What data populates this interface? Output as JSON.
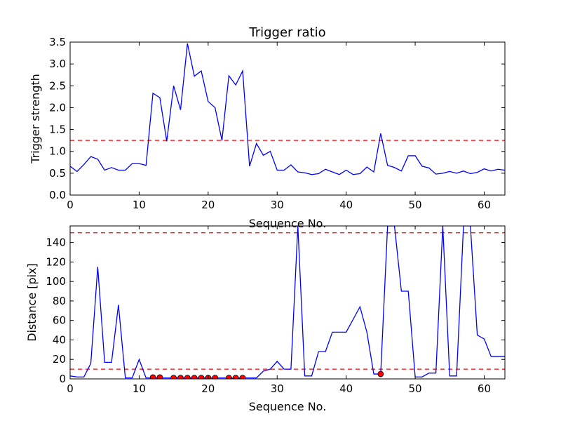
{
  "chart_data": [
    {
      "type": "line",
      "title": "Trigger ratio",
      "xlabel": "Sequence No.",
      "ylabel": "Trigger strength",
      "xlim": [
        0,
        63
      ],
      "ylim": [
        0,
        3.5
      ],
      "xticks": [
        0,
        10,
        20,
        30,
        40,
        50,
        60
      ],
      "yticks": [
        0.0,
        0.5,
        1.0,
        1.5,
        2.0,
        2.5,
        3.0,
        3.5
      ],
      "ytick_labels": [
        "0.0",
        "0.5",
        "1.0",
        "1.5",
        "2.0",
        "2.5",
        "3.0",
        "3.5"
      ],
      "grid": false,
      "threshold": 1.25,
      "colors": {
        "line": "#0000ff",
        "threshold": "#ff0000"
      },
      "series": [
        {
          "values": [
            0.66,
            0.54,
            0.7,
            0.88,
            0.82,
            0.57,
            0.63,
            0.57,
            0.57,
            0.72,
            0.72,
            0.68,
            2.33,
            2.23,
            1.23,
            2.5,
            1.95,
            3.47,
            2.72,
            2.84,
            2.14,
            2.0,
            1.25,
            2.73,
            2.52,
            2.84,
            0.66,
            1.18,
            0.91,
            1.0,
            0.57,
            0.57,
            0.69,
            0.53,
            0.51,
            0.47,
            0.49,
            0.59,
            0.53,
            0.47,
            0.57,
            0.47,
            0.49,
            0.64,
            0.53,
            1.41,
            0.68,
            0.63,
            0.55,
            0.9,
            0.9,
            0.66,
            0.62,
            0.48,
            0.5,
            0.54,
            0.5,
            0.55,
            0.49,
            0.52,
            0.6,
            0.55,
            0.59,
            0.57
          ]
        }
      ]
    },
    {
      "type": "line",
      "title": "",
      "xlabel": "Sequence No.",
      "ylabel": "Distance [pix]",
      "xlim": [
        0,
        63
      ],
      "ylim": [
        0,
        157
      ],
      "xticks": [
        0,
        10,
        20,
        30,
        40,
        50,
        60
      ],
      "yticks": [
        0,
        20,
        40,
        60,
        80,
        100,
        120,
        140
      ],
      "ytick_labels": [
        "0",
        "20",
        "40",
        "60",
        "80",
        "100",
        "120",
        "140"
      ],
      "grid": false,
      "thresholds": [
        10,
        150
      ],
      "colors": {
        "line": "#0000ff",
        "threshold": "#ff0000",
        "marker": "#ff0000"
      },
      "series": [
        {
          "values": [
            3,
            2,
            2,
            16,
            115,
            17,
            17,
            76,
            1,
            1,
            20,
            1,
            1,
            1,
            1,
            1,
            1,
            1,
            1,
            1,
            1,
            1,
            1,
            1,
            1,
            1,
            1,
            1,
            8,
            10,
            18,
            10,
            10,
            157,
            3,
            3,
            28,
            28,
            48,
            48,
            48,
            61,
            74,
            48,
            5,
            5,
            157,
            157,
            90,
            90,
            2,
            2,
            6,
            6,
            157,
            3,
            3,
            157,
            157,
            45,
            41,
            23,
            23,
            23
          ]
        },
        {
          "type": "scatter",
          "x": [
            12,
            13,
            15,
            16,
            17,
            18,
            19,
            20,
            21,
            23,
            24,
            25,
            45
          ],
          "y": [
            1.5,
            1.5,
            1,
            1,
            1,
            1,
            1,
            1,
            1,
            1,
            1,
            1,
            5
          ]
        }
      ]
    }
  ]
}
